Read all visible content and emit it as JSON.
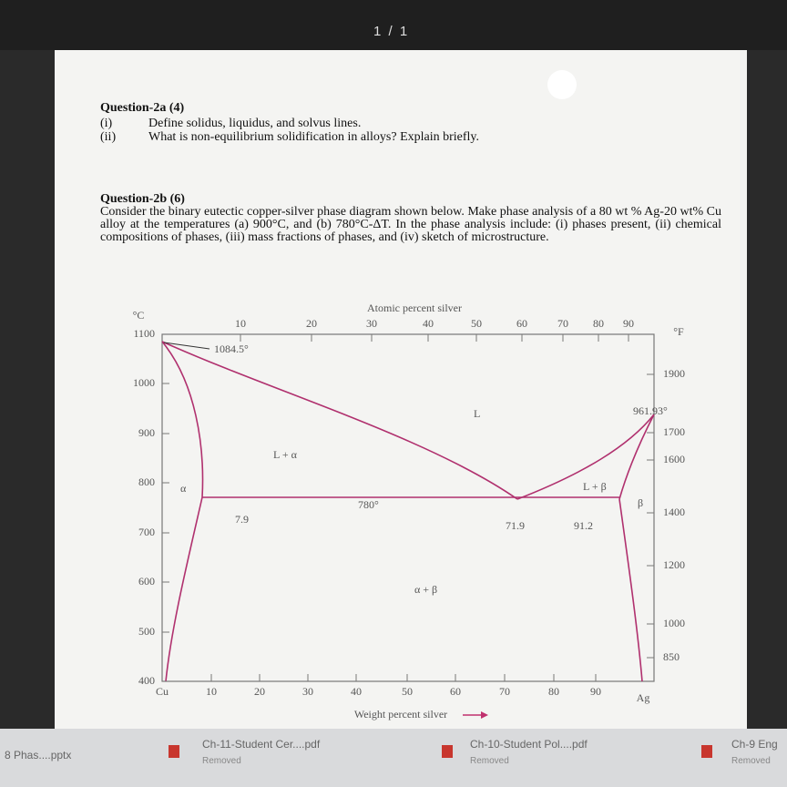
{
  "viewer": {
    "page_indicator": "1 / 1"
  },
  "document": {
    "q2a": {
      "title": "Question-2a (4)",
      "items": [
        {
          "number": "(i)",
          "text": "Define solidus, liquidus, and solvus lines."
        },
        {
          "number": "(ii)",
          "text": "What is non-equilibrium solidification in alloys? Explain briefly."
        }
      ]
    },
    "q2b": {
      "title": "Question-2b (6)",
      "text": "Consider the binary eutectic copper-silver phase diagram shown below. Make phase analysis of a 80 wt % Ag-20 wt% Cu alloy at the temperatures (a) 900°C, and (b) 780°C-ΔT. In the phase analysis include: (i) phases present, (ii) chemical compositions of phases, (iii) mass fractions of phases, and (iv) sketch of microstructure."
    },
    "diagram": {
      "top_axis_title": "Atomic percent silver",
      "bottom_axis_title": "Weight percent silver",
      "left_unit": "°C",
      "right_unit": "°F",
      "left_ticks": [
        "1100",
        "1000",
        "900",
        "800",
        "700",
        "600",
        "500",
        "400"
      ],
      "right_ticks": [
        "1900",
        "1700",
        "1600",
        "1400",
        "1200",
        "1000",
        "850"
      ],
      "top_ticks": [
        "10",
        "20",
        "30",
        "40",
        "50",
        "60",
        "70",
        "80",
        "90"
      ],
      "bottom_ticks": [
        "10",
        "20",
        "30",
        "40",
        "50",
        "60",
        "70",
        "80",
        "90"
      ],
      "left_end": "Cu",
      "right_end": "Ag",
      "labels": {
        "cu_melt": "1084.5°",
        "liquid": "L",
        "ag_melt": "961.93°",
        "l_alpha": "L + α",
        "alpha": "α",
        "l_beta": "L + β",
        "beta": "β",
        "eutectic_temp": "780°",
        "alpha_comp": "7.9",
        "eutectic_comp": "71.9",
        "beta_comp": "91.2",
        "alpha_beta": "α + β"
      }
    }
  },
  "downloads": [
    {
      "name": "8 Phas....pptx"
    },
    {
      "name": "Ch-11-Student Cer....pdf",
      "status": "Removed"
    },
    {
      "name": "Ch-10-Student Pol....pdf",
      "status": "Removed"
    },
    {
      "name": "Ch-9 Eng",
      "status": "Removed"
    }
  ]
}
